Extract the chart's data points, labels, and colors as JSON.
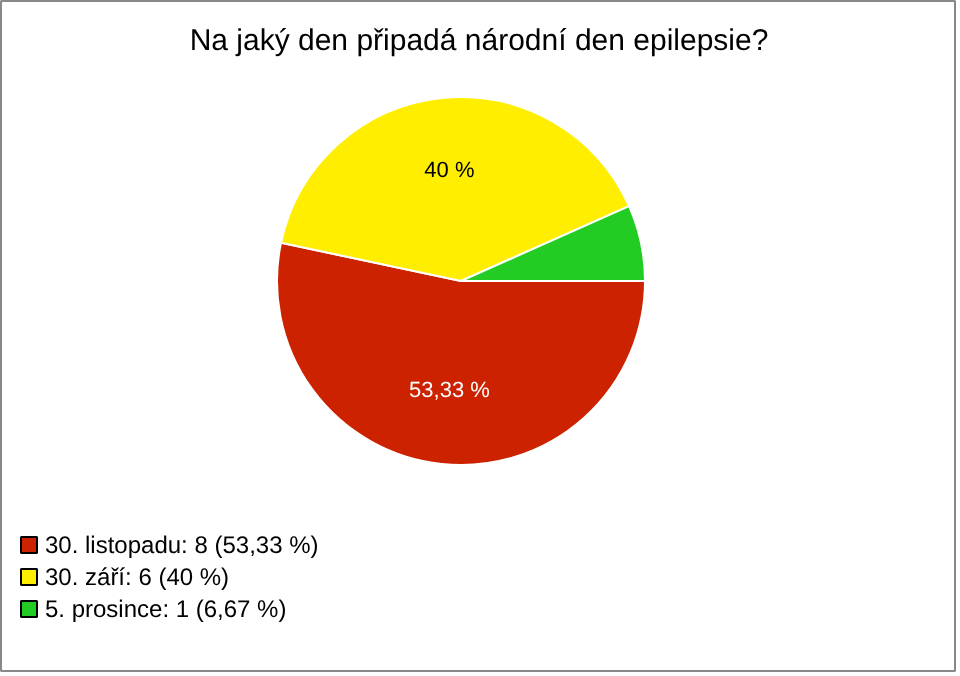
{
  "chart_data": {
    "type": "pie",
    "title": "Na jaký den připadá národní den epilepsie?",
    "categories": [
      "30. listopadu: 8 (53,33 %)",
      "30. září: 6 (40 %)",
      "5. prosince: 1 (6,67 %)"
    ],
    "values": [
      53.33,
      40,
      6.67
    ],
    "colors": [
      "#cc2200",
      "#ffee00",
      "#22cc22"
    ],
    "value_labels": [
      "53,33 %",
      "40 %",
      null
    ],
    "legend": "bottom left"
  }
}
